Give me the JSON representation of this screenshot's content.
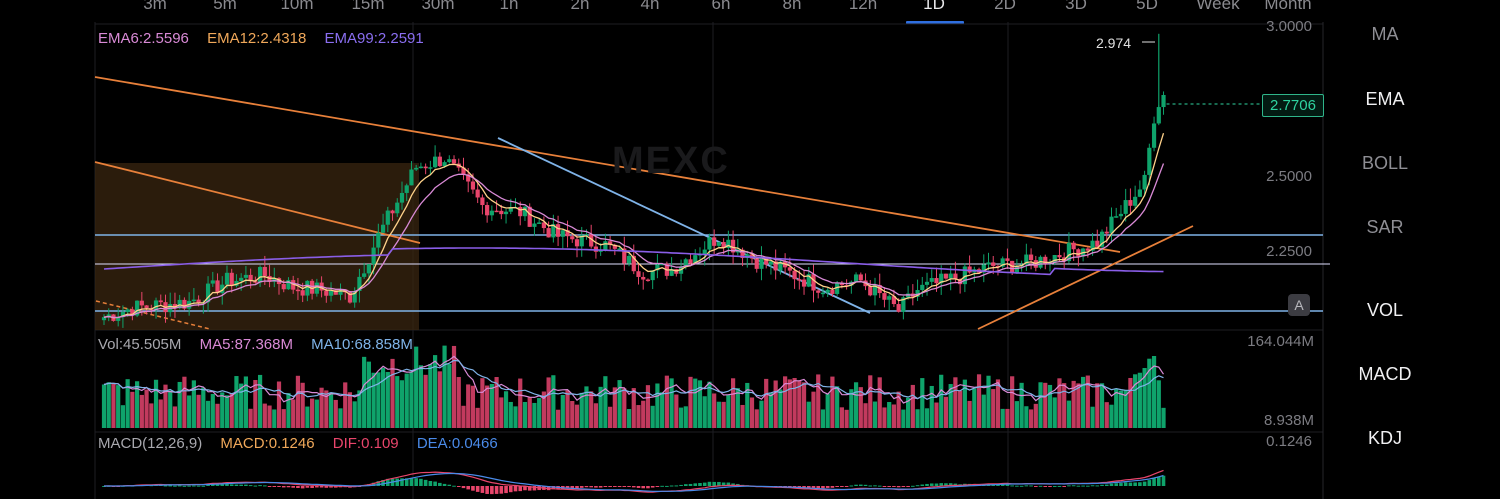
{
  "timeframes": [
    "3m",
    "5m",
    "10m",
    "15m",
    "30m",
    "1h",
    "2h",
    "4h",
    "6h",
    "8h",
    "12h",
    "1D",
    "2D",
    "3D",
    "5D",
    "Week",
    "Month"
  ],
  "active_timeframe": "1D",
  "ema_legend": {
    "ema6": "EMA6:2.5596",
    "ema12": "EMA12:2.4318",
    "ema99": "EMA99:2.2591"
  },
  "vol_legend": {
    "vol": "Vol:45.505M",
    "ma5": "MA5:87.368M",
    "ma10": "MA10:68.858M"
  },
  "macd_legend": {
    "params": "MACD(12,26,9)",
    "macd": "MACD:0.1246",
    "dif": "DIF:0.109",
    "dea": "DEA:0.0466"
  },
  "price_axis": {
    "top": "3.0000",
    "mid": "2.5000",
    "low": "2.2500"
  },
  "vol_axis": {
    "top": "164.044M",
    "bottom": "8.938M"
  },
  "macd_axis": {
    "top": "0.1246"
  },
  "high_label": "2.974",
  "last_price": "2.7706",
  "auto_button": "A",
  "watermark": "MEXC",
  "indicators": [
    "MA",
    "EMA",
    "BOLL",
    "SAR",
    "VOL",
    "MACD",
    "KDJ"
  ],
  "active_indicators": [
    "EMA",
    "VOL",
    "MACD",
    "KDJ"
  ],
  "colors": {
    "up": "#0fa36b",
    "down": "#e8456b",
    "ema6": "#f0a85a",
    "ema12": "#f0a85a",
    "ema99": "#8a5ee8",
    "ma5": "#d98ad6",
    "ma10": "#7fb3e8",
    "trendline": "#e8803a",
    "hline": "#7fb3e8",
    "accent": "#2f6fe0"
  }
}
